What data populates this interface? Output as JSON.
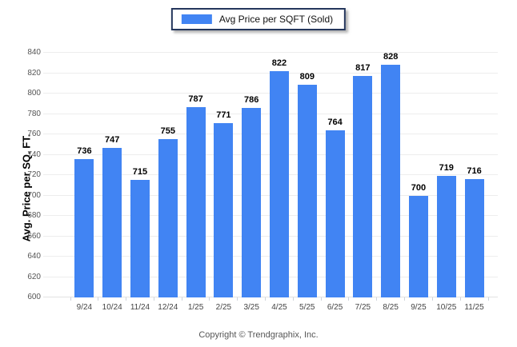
{
  "legend": {
    "label": "Avg Price per SQFT (Sold)",
    "swatch_color": "#4184f3"
  },
  "chart_data": {
    "type": "bar",
    "title": "",
    "categories": [
      "9/24",
      "10/24",
      "11/24",
      "12/24",
      "1/25",
      "2/25",
      "3/25",
      "4/25",
      "5/25",
      "6/25",
      "7/25",
      "8/25",
      "9/25",
      "10/25",
      "11/25"
    ],
    "values": [
      736,
      747,
      715,
      755,
      787,
      771,
      786,
      822,
      809,
      764,
      817,
      828,
      700,
      719,
      716
    ],
    "xlabel": "",
    "ylabel": "Avg. Price per SQ. FT.",
    "ylim": [
      600,
      840
    ],
    "ytick_step": 20,
    "grid": true,
    "legend_position": "top-center",
    "bar_color": "#4184f3",
    "gridline_color": "#ededed"
  },
  "footer": {
    "copyright": "Copyright © Trendgraphix, Inc."
  }
}
